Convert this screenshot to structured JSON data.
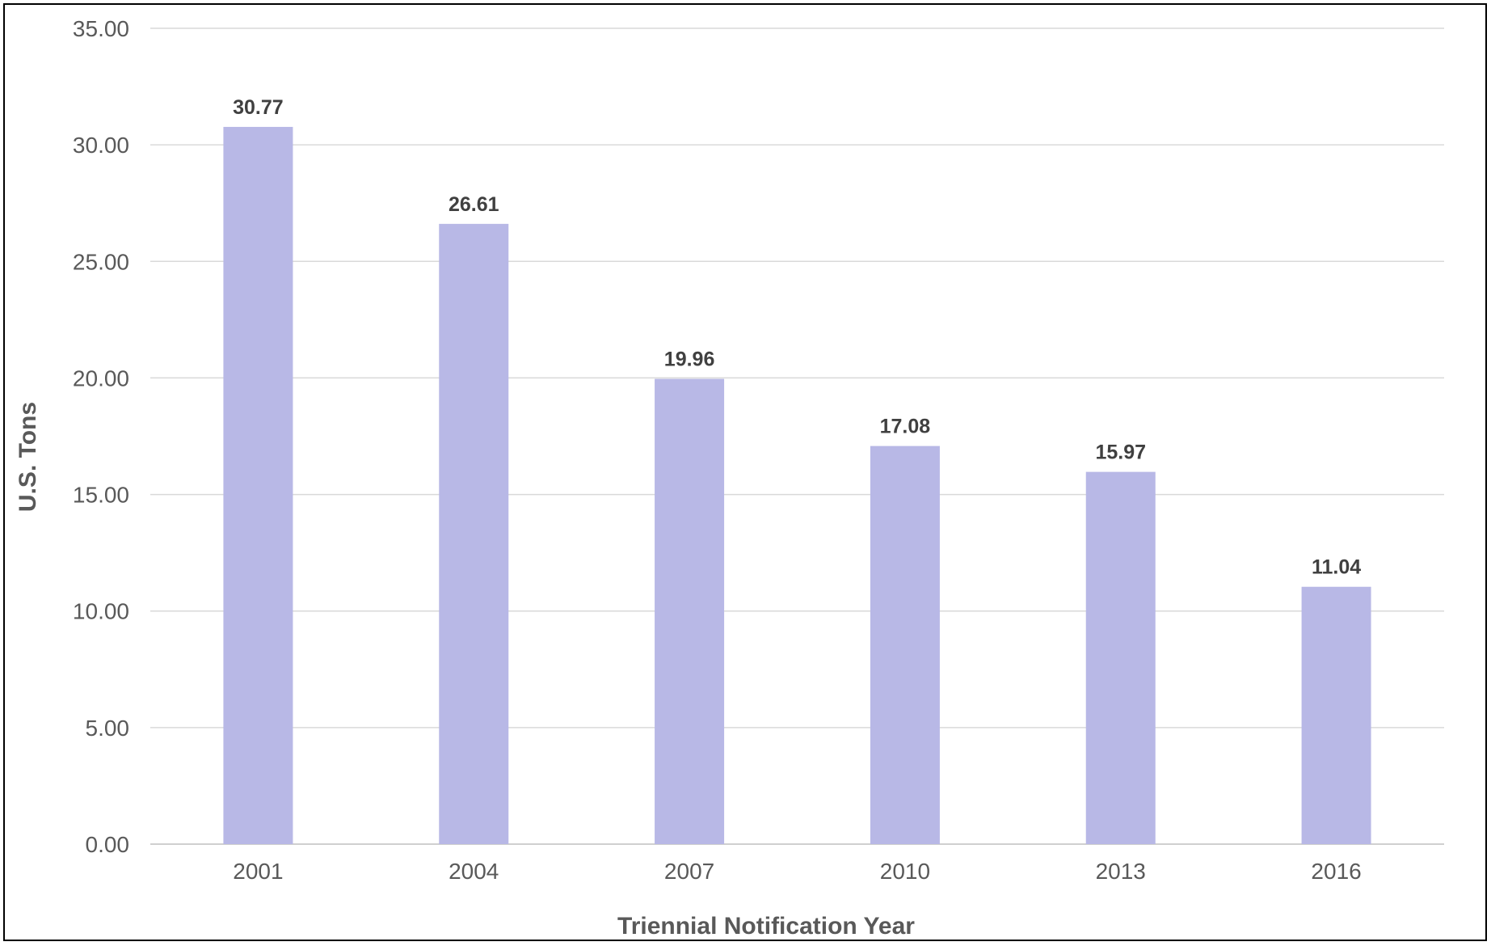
{
  "chart_data": {
    "type": "bar",
    "title": "",
    "xlabel": "Triennial Notification Year",
    "ylabel": "U.S. Tons",
    "categories": [
      "2001",
      "2004",
      "2007",
      "2010",
      "2013",
      "2016"
    ],
    "values": [
      30.77,
      26.61,
      19.96,
      17.08,
      15.97,
      11.04
    ],
    "value_labels": [
      "30.77",
      "26.61",
      "19.96",
      "17.08",
      "15.97",
      "11.04"
    ],
    "ylim": [
      0,
      35
    ],
    "yticks": [
      "0.00",
      "5.00",
      "10.00",
      "15.00",
      "20.00",
      "25.00",
      "30.00",
      "35.00"
    ],
    "ytick_values": [
      0,
      5,
      10,
      15,
      20,
      25,
      30,
      35
    ],
    "grid": true,
    "legend": "none",
    "bar_color": "#b8b8e6"
  }
}
